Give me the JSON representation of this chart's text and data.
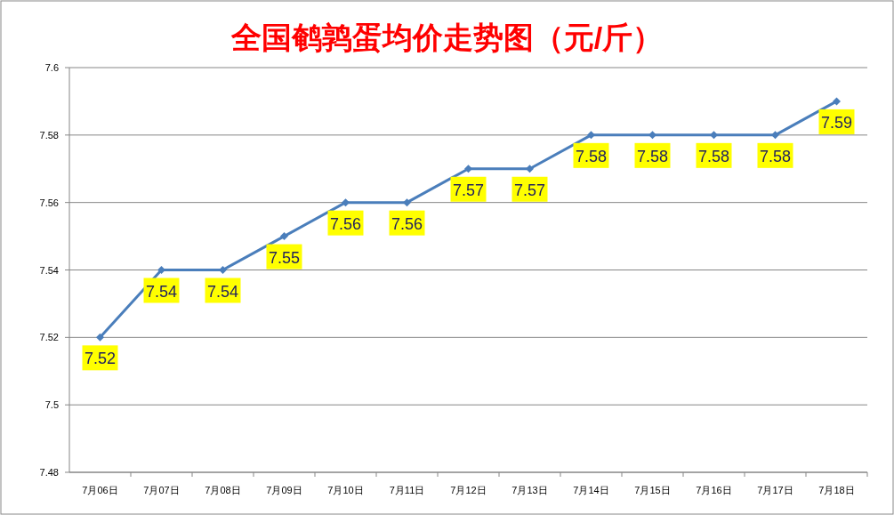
{
  "chart_data": {
    "type": "line",
    "title": "全国鹌鹑蛋均价走势图（元/斤）",
    "categories": [
      "7月06日",
      "7月07日",
      "7月08日",
      "7月09日",
      "7月10日",
      "7月11日",
      "7月12日",
      "7月13日",
      "7月14日",
      "7月15日",
      "7月16日",
      "7月17日",
      "7月18日"
    ],
    "series": [
      {
        "color": "#4a7ebb",
        "values": [
          7.52,
          7.54,
          7.54,
          7.55,
          7.56,
          7.56,
          7.57,
          7.57,
          7.58,
          7.58,
          7.58,
          7.58,
          7.59
        ]
      }
    ],
    "ylim": [
      7.48,
      7.6
    ],
    "yticks": [
      7.48,
      7.5,
      7.52,
      7.54,
      7.56,
      7.58,
      7.6
    ],
    "grid": "y",
    "marker": "diamond",
    "line_style": "solid",
    "data_labels": true
  }
}
